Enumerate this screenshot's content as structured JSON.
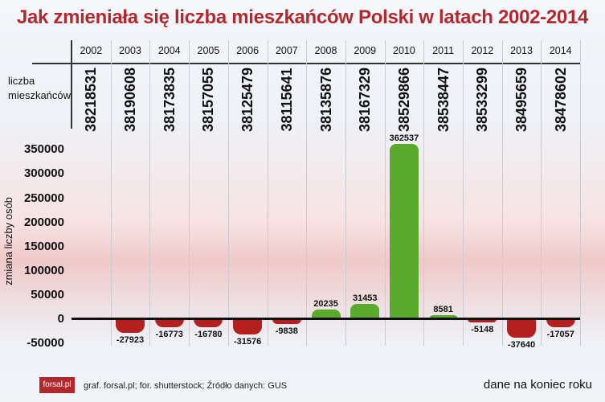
{
  "title": "Jak zmieniała się liczba mieszkańców Polski w latach 2002-2014",
  "row_label_line1": "liczba",
  "row_label_line2": "mieszkańców",
  "chart_data": {
    "type": "bar",
    "title": "Jak zmieniała się liczba mieszkańców Polski w latach 2002-2014",
    "ylabel": "zmiana liczby osób",
    "xlabel": "",
    "ylim": [
      -50000,
      362537
    ],
    "yticks": [
      "350000",
      "300000",
      "250000",
      "200000",
      "150000",
      "100000",
      "50000",
      "0",
      "-50000"
    ],
    "ytick_values": [
      350000,
      300000,
      250000,
      200000,
      150000,
      100000,
      50000,
      0,
      -50000
    ],
    "years": [
      "2002",
      "2003",
      "2004",
      "2005",
      "2006",
      "2007",
      "2008",
      "2009",
      "2010",
      "2011",
      "2012",
      "2013",
      "2014"
    ],
    "population": [
      "38218531",
      "38190608",
      "38173835",
      "38157055",
      "38125479",
      "38115641",
      "38135876",
      "38167329",
      "38529866",
      "38538447",
      "38533299",
      "38495659",
      "38478602"
    ],
    "categories": [
      "2003",
      "2004",
      "2005",
      "2006",
      "2007",
      "2008",
      "2009",
      "2010",
      "2011",
      "2012",
      "2013",
      "2014"
    ],
    "values": [
      -27923,
      -16773,
      -16780,
      -31576,
      -9838,
      20235,
      31453,
      362537,
      8581,
      -5148,
      -37640,
      -17057
    ],
    "value_labels": [
      "-27923",
      "-16773",
      "-16780",
      "-31576",
      "-9838",
      "20235",
      "31453",
      "362537",
      "8581",
      "-5148",
      "-37640",
      "-17057"
    ],
    "colors": {
      "positive": "#5aaa2e",
      "negative": "#b3201e"
    }
  },
  "footer": {
    "logo": "forsal.pl",
    "credits": "graf. forsal.pl; for. shutterstock;  Źródło danych:  GUS",
    "note": "dane na koniec roku"
  }
}
